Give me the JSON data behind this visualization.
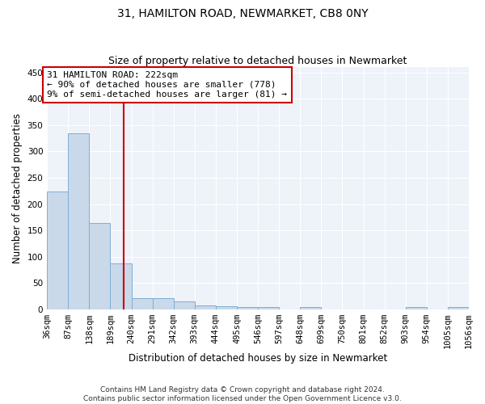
{
  "title": "31, HAMILTON ROAD, NEWMARKET, CB8 0NY",
  "subtitle": "Size of property relative to detached houses in Newmarket",
  "xlabel": "Distribution of detached houses by size in Newmarket",
  "ylabel": "Number of detached properties",
  "bin_edges": [
    36,
    87,
    138,
    189,
    240,
    291,
    342,
    393,
    444,
    495,
    546,
    597,
    648,
    699,
    750,
    801,
    852,
    903,
    954,
    1005,
    1056
  ],
  "bar_heights": [
    224,
    335,
    164,
    88,
    21,
    21,
    15,
    8,
    6,
    4,
    4,
    0,
    4,
    0,
    0,
    0,
    0,
    4,
    0,
    4
  ],
  "bar_color": "#c9d9ea",
  "bar_edge_color": "#7fafd4",
  "property_size": 222,
  "vline_color": "#cc0000",
  "annotation_text": "31 HAMILTON ROAD: 222sqm\n← 90% of detached houses are smaller (778)\n9% of semi-detached houses are larger (81) →",
  "annotation_box_color": "#cc0000",
  "ylim": [
    0,
    460
  ],
  "yticks": [
    0,
    50,
    100,
    150,
    200,
    250,
    300,
    350,
    400,
    450
  ],
  "background_color": "#eef2f9",
  "grid_color": "#ffffff",
  "footer_text": "Contains HM Land Registry data © Crown copyright and database right 2024.\nContains public sector information licensed under the Open Government Licence v3.0.",
  "title_fontsize": 10,
  "subtitle_fontsize": 9,
  "xlabel_fontsize": 8.5,
  "ylabel_fontsize": 8.5,
  "tick_fontsize": 7.5,
  "annotation_fontsize": 8,
  "footer_fontsize": 6.5
}
